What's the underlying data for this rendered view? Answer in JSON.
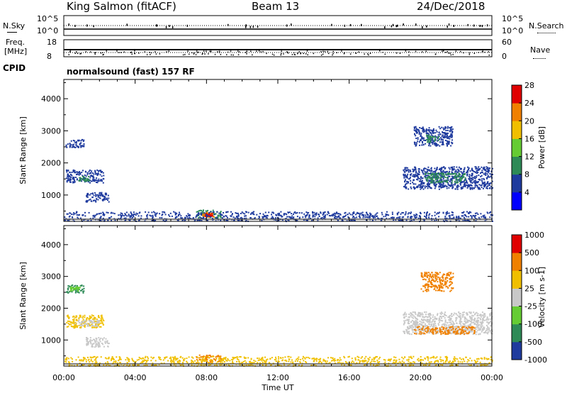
{
  "header": {
    "station": "King Salmon (fitACF)",
    "beam": "Beam 13",
    "date": "24/Dec/2018"
  },
  "noise_panel": {
    "left_label": "N.Sky",
    "right_label": "N.Search",
    "left_ticks": [
      "10^5",
      "10^0"
    ],
    "right_ticks": [
      "10^5",
      "10^0"
    ]
  },
  "freq_panel": {
    "left_label_1": "Freq.",
    "left_label_2": "[MHz]",
    "right_label": "Nave",
    "left_ticks": [
      "18",
      "8"
    ],
    "right_ticks": [
      "60",
      "0"
    ]
  },
  "cpid": {
    "label": "CPID",
    "program": "normalsound (fast) 157 RF"
  },
  "colors": {
    "dark_blue": "#1f3b9e",
    "green": "#2e8b57",
    "light_green": "#66cc33",
    "grey": "#c8c8c8",
    "yellow": "#f0c000",
    "orange": "#f08000",
    "red": "#e00000"
  },
  "chart_data": [
    {
      "type": "heatmap",
      "panel": "power",
      "ylabel": "Slant Range [km]",
      "ylim": [
        180,
        4600
      ],
      "yticks": [
        1000,
        2000,
        3000,
        4000
      ],
      "xlim": [
        0,
        24
      ],
      "colorbar": {
        "label": "Power [dB]",
        "ticks": [
          "4",
          "8",
          "12",
          "16",
          "20",
          "24",
          "28"
        ],
        "colors": [
          "#0000ff",
          "#1f3b9e",
          "#2e8b57",
          "#66cc33",
          "#f0c000",
          "#f08000",
          "#e00000"
        ]
      },
      "echo_regions": [
        {
          "t0": 0.1,
          "t1": 1.1,
          "r0": 2500,
          "r1": 2750,
          "color": "#1f3b9e"
        },
        {
          "t0": 0.1,
          "t1": 2.2,
          "r0": 1400,
          "r1": 1800,
          "color": "#1f3b9e"
        },
        {
          "t0": 0.8,
          "t1": 1.4,
          "r0": 1450,
          "r1": 1600,
          "color": "#2e8b57"
        },
        {
          "t0": 1.2,
          "t1": 2.5,
          "r0": 800,
          "r1": 1100,
          "color": "#1f3b9e"
        },
        {
          "t0": 7.4,
          "t1": 8.8,
          "r0": 300,
          "r1": 550,
          "color": "#2e8b57"
        },
        {
          "t0": 7.7,
          "t1": 8.4,
          "r0": 330,
          "r1": 480,
          "color": "#f08000"
        },
        {
          "t0": 7.9,
          "t1": 8.3,
          "r0": 350,
          "r1": 450,
          "color": "#e00000"
        },
        {
          "t0": 0.0,
          "t1": 24.0,
          "r0": 200,
          "r1": 500,
          "color": "#1f3b9e"
        },
        {
          "t0": 19.6,
          "t1": 21.8,
          "r0": 2550,
          "r1": 3150,
          "color": "#1f3b9e"
        },
        {
          "t0": 20.3,
          "t1": 21.0,
          "r0": 2650,
          "r1": 2900,
          "color": "#2e8b57"
        },
        {
          "t0": 19.0,
          "t1": 24.0,
          "r0": 1200,
          "r1": 1900,
          "color": "#1f3b9e"
        },
        {
          "t0": 20.2,
          "t1": 22.5,
          "r0": 1400,
          "r1": 1700,
          "color": "#2e8b57"
        }
      ]
    },
    {
      "type": "heatmap",
      "panel": "velocity",
      "ylabel": "Slant Range [km]",
      "ylim": [
        180,
        4600
      ],
      "yticks": [
        1000,
        2000,
        3000,
        4000
      ],
      "xlim": [
        0,
        24
      ],
      "xticks": [
        "00:00",
        "04:00",
        "08:00",
        "12:00",
        "16:00",
        "20:00",
        "00:00"
      ],
      "xlabel": "Time UT",
      "colorbar": {
        "label": "Velocity [m s-1]",
        "ticks": [
          "1000",
          "500",
          "100",
          "25",
          "-25",
          "-100",
          "-500",
          "-1000"
        ],
        "colors": [
          "#1f3b9e",
          "#2e8b57",
          "#66cc33",
          "#c8c8c8",
          "#f0c000",
          "#f08000",
          "#e00000"
        ]
      },
      "echo_regions": [
        {
          "t0": 0.1,
          "t1": 1.1,
          "r0": 2500,
          "r1": 2750,
          "color": "#2e8b57"
        },
        {
          "t0": 0.3,
          "t1": 0.9,
          "r0": 2550,
          "r1": 2700,
          "color": "#66cc33"
        },
        {
          "t0": 0.1,
          "t1": 2.2,
          "r0": 1400,
          "r1": 1800,
          "color": "#f0c000"
        },
        {
          "t0": 0.6,
          "t1": 2.0,
          "r0": 1450,
          "r1": 1650,
          "color": "#c8c8c8"
        },
        {
          "t0": 1.2,
          "t1": 2.5,
          "r0": 800,
          "r1": 1100,
          "color": "#c8c8c8"
        },
        {
          "t0": 7.4,
          "t1": 8.8,
          "r0": 300,
          "r1": 550,
          "color": "#f08000"
        },
        {
          "t0": 0.0,
          "t1": 24.0,
          "r0": 200,
          "r1": 500,
          "color": "#f0c000"
        },
        {
          "t0": 20.0,
          "t1": 21.8,
          "r0": 2550,
          "r1": 3150,
          "color": "#f08000"
        },
        {
          "t0": 19.0,
          "t1": 24.0,
          "r0": 1200,
          "r1": 1900,
          "color": "#c8c8c8"
        },
        {
          "t0": 19.6,
          "t1": 23.0,
          "r0": 1200,
          "r1": 1450,
          "color": "#f08000"
        }
      ]
    }
  ]
}
